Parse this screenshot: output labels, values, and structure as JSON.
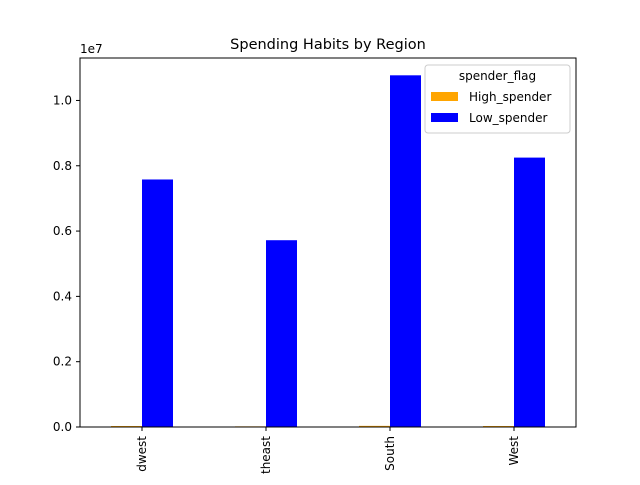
{
  "chart_data": {
    "type": "bar",
    "title": "Spending Habits by Region",
    "xlabel": "",
    "ylabel": "",
    "offset_label": "1e7",
    "categories": [
      "Midwest",
      "Northeast",
      "South",
      "West"
    ],
    "category_tick_labels": [
      "dwest",
      "theast",
      "South",
      "West"
    ],
    "series": [
      {
        "name": "High_spender",
        "color": "#ffa500",
        "values": [
          30000,
          20000,
          35000,
          30000
        ]
      },
      {
        "name": "Low_spender",
        "color": "#0000ff",
        "values": [
          7580000,
          5720000,
          10770000,
          8250000
        ]
      }
    ],
    "ylim": [
      0,
      11300000
    ],
    "yticks": [
      0,
      2000000,
      4000000,
      6000000,
      8000000,
      10000000
    ],
    "ytick_labels": [
      "0.0",
      "0.2",
      "0.4",
      "0.6",
      "0.8",
      "1.0"
    ],
    "legend": {
      "title": "spender_flag",
      "placement": "top-right"
    },
    "grid": false
  }
}
